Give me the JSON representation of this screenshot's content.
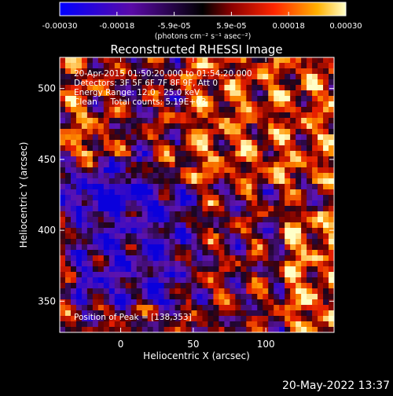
{
  "chart_data": {
    "type": "heatmap",
    "title": "Reconstructed RHESSI Image",
    "xlabel": "Heliocentric X (arcsec)",
    "ylabel": "Heliocentric Y (arcsec)",
    "xlim": [
      -42,
      147
    ],
    "ylim": [
      328,
      522
    ],
    "xticks": [
      0,
      50,
      100
    ],
    "yticks": [
      350,
      400,
      450,
      500
    ],
    "tick_labels": {
      "x": [
        "0",
        "50",
        "100"
      ],
      "y": [
        "350",
        "400",
        "450",
        "500"
      ]
    },
    "colorbar": {
      "range": [
        -0.0003,
        0.0003
      ],
      "tick_labels": [
        "-0.00030",
        "-0.00018",
        "-5.9e-05",
        "5.9e-05",
        "0.00018",
        "0.00030"
      ],
      "units_label": "(photons cm⁻² s⁻¹ asec⁻²)"
    },
    "annotations": {
      "time_range": "20-Apr-2015 01:50:20.000 to 01:54:20.000",
      "detectors": "Detectors: 3F 5F 6F 7F 8F 9F, Att 0",
      "energy_range": "Energy Range: 12.0 - 25.0 keV",
      "clean_counts": "Clean     Total counts: 5.19E+03",
      "peak": "Position of Peak = [138,353]"
    },
    "timestamp": "20-May-2022 13:37"
  }
}
